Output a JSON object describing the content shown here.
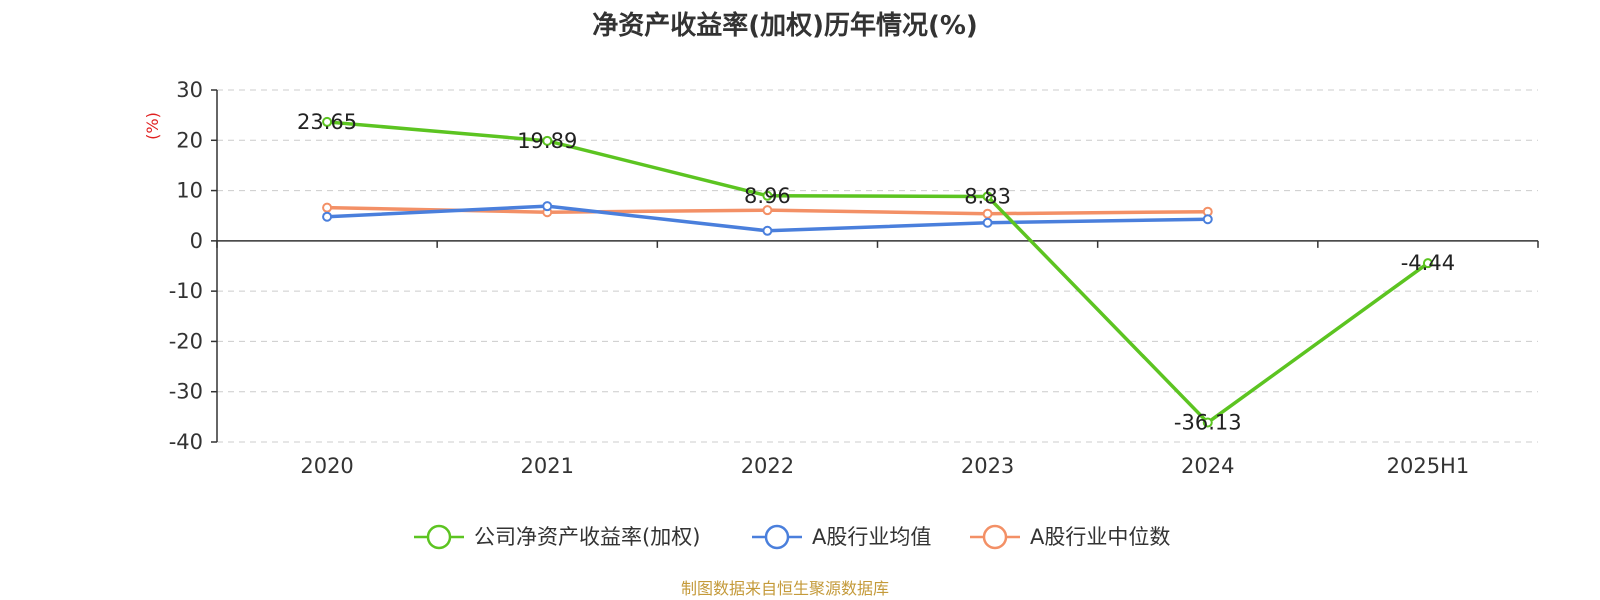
{
  "chart_data": {
    "type": "line",
    "title": "净资产收益率(加权)历年情况(%)",
    "ylabel": "(%)",
    "categories": [
      "2020",
      "2021",
      "2022",
      "2023",
      "2024",
      "2025H1"
    ],
    "yticks": [
      30,
      20,
      10,
      0,
      -10,
      -20,
      -30,
      -40
    ],
    "ylim": [
      -40,
      30
    ],
    "grid": true,
    "legend_position": "bottom",
    "series": [
      {
        "name": "公司净资产收益率(加权)",
        "color": "#5cc421",
        "values": [
          23.65,
          19.89,
          8.96,
          8.83,
          -36.13,
          -4.44
        ],
        "labels": [
          "23.65",
          "19.89",
          "8.96",
          "8.83",
          "-36.13",
          "-4.44"
        ]
      },
      {
        "name": "A股行业均值",
        "color": "#4a7fdc",
        "values": [
          4.8,
          6.9,
          2.0,
          3.6,
          4.3,
          null
        ]
      },
      {
        "name": "A股行业中位数",
        "color": "#f39066",
        "values": [
          6.6,
          5.7,
          6.1,
          5.4,
          5.8,
          null
        ]
      }
    ]
  },
  "source": "制图数据来自恒生聚源数据库"
}
